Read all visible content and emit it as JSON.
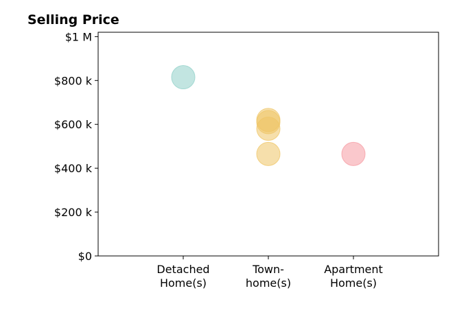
{
  "chart_data": {
    "type": "scatter",
    "title": "Selling Price",
    "xlabel": "",
    "ylabel": "",
    "categories": [
      [
        "Detached",
        "Home(s)"
      ],
      [
        "Town-",
        "home(s)"
      ],
      [
        "Apartment",
        "Home(s)"
      ]
    ],
    "y_ticks": [
      {
        "value": 0,
        "label": "$0"
      },
      {
        "value": 200000,
        "label": "$200 k"
      },
      {
        "value": 400000,
        "label": "$400 k"
      },
      {
        "value": 600000,
        "label": "$600 k"
      },
      {
        "value": 800000,
        "label": "$800 k"
      },
      {
        "value": 1000000,
        "label": "$1 M"
      }
    ],
    "ylim": [
      0,
      1020000
    ],
    "xlim": [
      -1,
      3
    ],
    "grid": false,
    "series": [
      {
        "category_colors": [
          "#8fd0c8",
          "#efc566",
          "#f59aa2"
        ],
        "points": [
          {
            "x": 0,
            "y": 815000
          },
          {
            "x": 1,
            "y": 620000
          },
          {
            "x": 1,
            "y": 610000
          },
          {
            "x": 1,
            "y": 580000
          },
          {
            "x": 1,
            "y": 465000
          },
          {
            "x": 2,
            "y": 465000
          }
        ]
      }
    ]
  }
}
